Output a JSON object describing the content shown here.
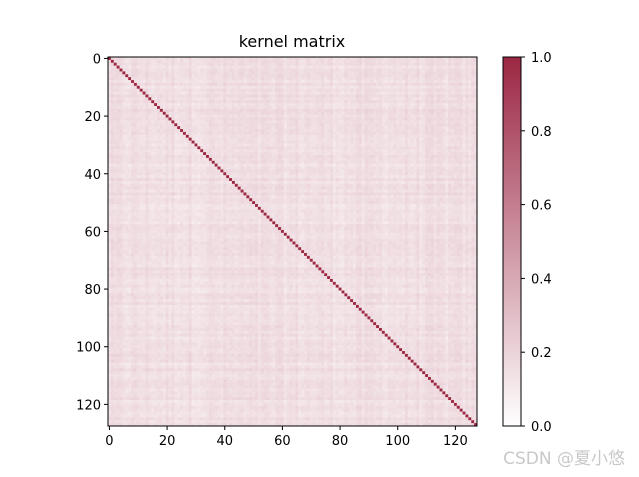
{
  "chart_data": {
    "type": "heatmap",
    "title": "kernel matrix",
    "size": 128,
    "diagonal_value": 1.0,
    "offdiagonal_typical_value": 0.15,
    "offdiagonal_range": [
      0.05,
      0.3
    ],
    "x_ticks": [
      0,
      20,
      40,
      60,
      80,
      100,
      120
    ],
    "y_ticks": [
      0,
      20,
      40,
      60,
      80,
      100,
      120
    ],
    "x_tick_labels": [
      "0",
      "20",
      "40",
      "60",
      "80",
      "100",
      "120"
    ],
    "y_tick_labels": [
      "0",
      "20",
      "40",
      "60",
      "80",
      "100",
      "120"
    ],
    "colorbar": {
      "min": 0.0,
      "max": 1.0,
      "ticks": [
        0.0,
        0.2,
        0.4,
        0.6,
        0.8,
        1.0
      ],
      "tick_labels": [
        "0.0",
        "0.2",
        "0.4",
        "0.6",
        "0.8",
        "1.0"
      ],
      "color_low": "#ffffff",
      "color_high": "#9b2743"
    }
  },
  "watermark": "CSDN @夏小悠"
}
